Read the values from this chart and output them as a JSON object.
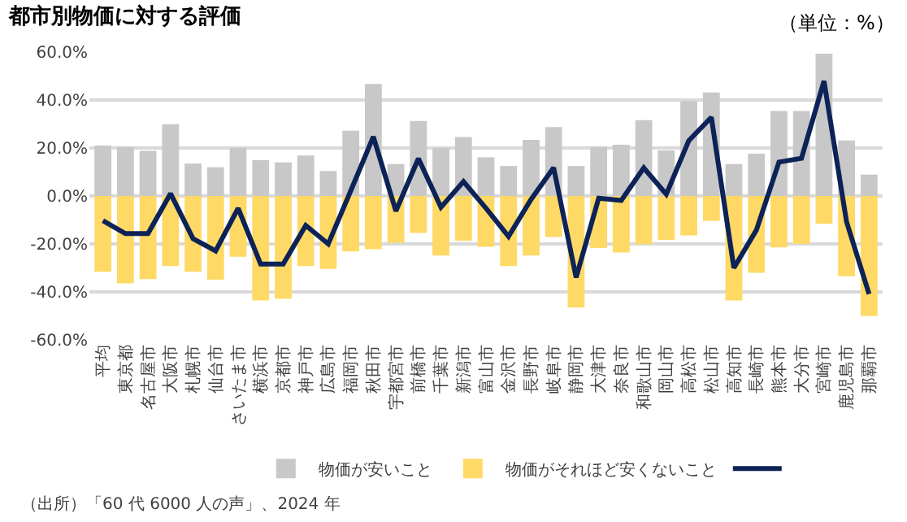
{
  "chart_data": {
    "type": "bar",
    "title": "都市別物価に対する評価",
    "stacked": true,
    "categories": [
      "平均",
      "東京都",
      "名古屋市",
      "大阪市",
      "札幌市",
      "仙台市",
      "さいたま市",
      "横浜市",
      "京都市",
      "神戸市",
      "広島市",
      "福岡市",
      "秋田市",
      "宇都宮市",
      "前橋市",
      "千葉市",
      "新潟市",
      "富山市",
      "金沢市",
      "長野市",
      "岐阜市",
      "静岡市",
      "大津市",
      "奈良市",
      "和歌山市",
      "岡山市",
      "高松市",
      "松山市",
      "高知市",
      "長崎市",
      "熊本市",
      "大分市",
      "宮崎市",
      "鹿児島市",
      "那覇市"
    ],
    "series": [
      {
        "name": "物価が安いこと",
        "color": "#c8c8c8",
        "values": [
          21.0,
          20.5,
          18.8,
          29.9,
          13.5,
          12.0,
          20.0,
          14.9,
          14.0,
          16.9,
          10.4,
          27.2,
          46.7,
          13.3,
          31.3,
          20.0,
          24.6,
          16.1,
          12.5,
          23.4,
          28.7,
          12.5,
          20.5,
          21.4,
          31.6,
          19.0,
          39.5,
          43.1,
          13.3,
          17.6,
          35.4,
          35.4,
          59.3,
          23.1,
          8.9
        ]
      },
      {
        "name": "物価がそれほど安くないこと",
        "color": "#ffd966",
        "values": [
          -31.6,
          -36.4,
          -34.7,
          -29.2,
          -31.6,
          -34.9,
          -25.3,
          -43.6,
          -42.9,
          -29.2,
          -30.4,
          -23.1,
          -22.2,
          -19.5,
          -15.4,
          -24.8,
          -18.6,
          -21.2,
          -29.2,
          -24.8,
          -17.1,
          -46.5,
          -21.7,
          -23.6,
          -20.2,
          -18.3,
          -16.4,
          -10.4,
          -43.6,
          -32.0,
          -21.4,
          -20.0,
          -11.6,
          -33.5,
          -50.1
        ]
      },
      {
        "type": "line",
        "color": "#0d2357",
        "values": [
          -10.3,
          -15.7,
          -15.7,
          1.0,
          -17.8,
          -22.9,
          -5.1,
          -28.4,
          -28.4,
          -12.3,
          -20.0,
          2.2,
          24.7,
          -6.3,
          15.6,
          -4.7,
          6.0,
          -5.1,
          -16.9,
          -1.4,
          11.8,
          -34.0,
          -0.9,
          -1.9,
          11.7,
          0.7,
          23.1,
          32.8,
          -30.0,
          -14.2,
          14.1,
          15.7,
          47.9,
          -10.8,
          -40.9
        ]
      }
    ],
    "ylim": [
      -60,
      60
    ],
    "yticks": [
      {
        "value": -60,
        "label": "-60.0%"
      },
      {
        "value": -40,
        "label": "-40.0%"
      },
      {
        "value": -20,
        "label": "-20.0%"
      },
      {
        "value": 0,
        "label": "0.0%"
      },
      {
        "value": 20,
        "label": "20.0%"
      },
      {
        "value": 40,
        "label": "40.0%"
      },
      {
        "value": 60,
        "label": "60.0%"
      }
    ],
    "grid": "y",
    "legend": "bottom",
    "annotations": [
      "（単位：%）",
      "（出所）「60 代 6000 人の声」、2024 年"
    ]
  }
}
